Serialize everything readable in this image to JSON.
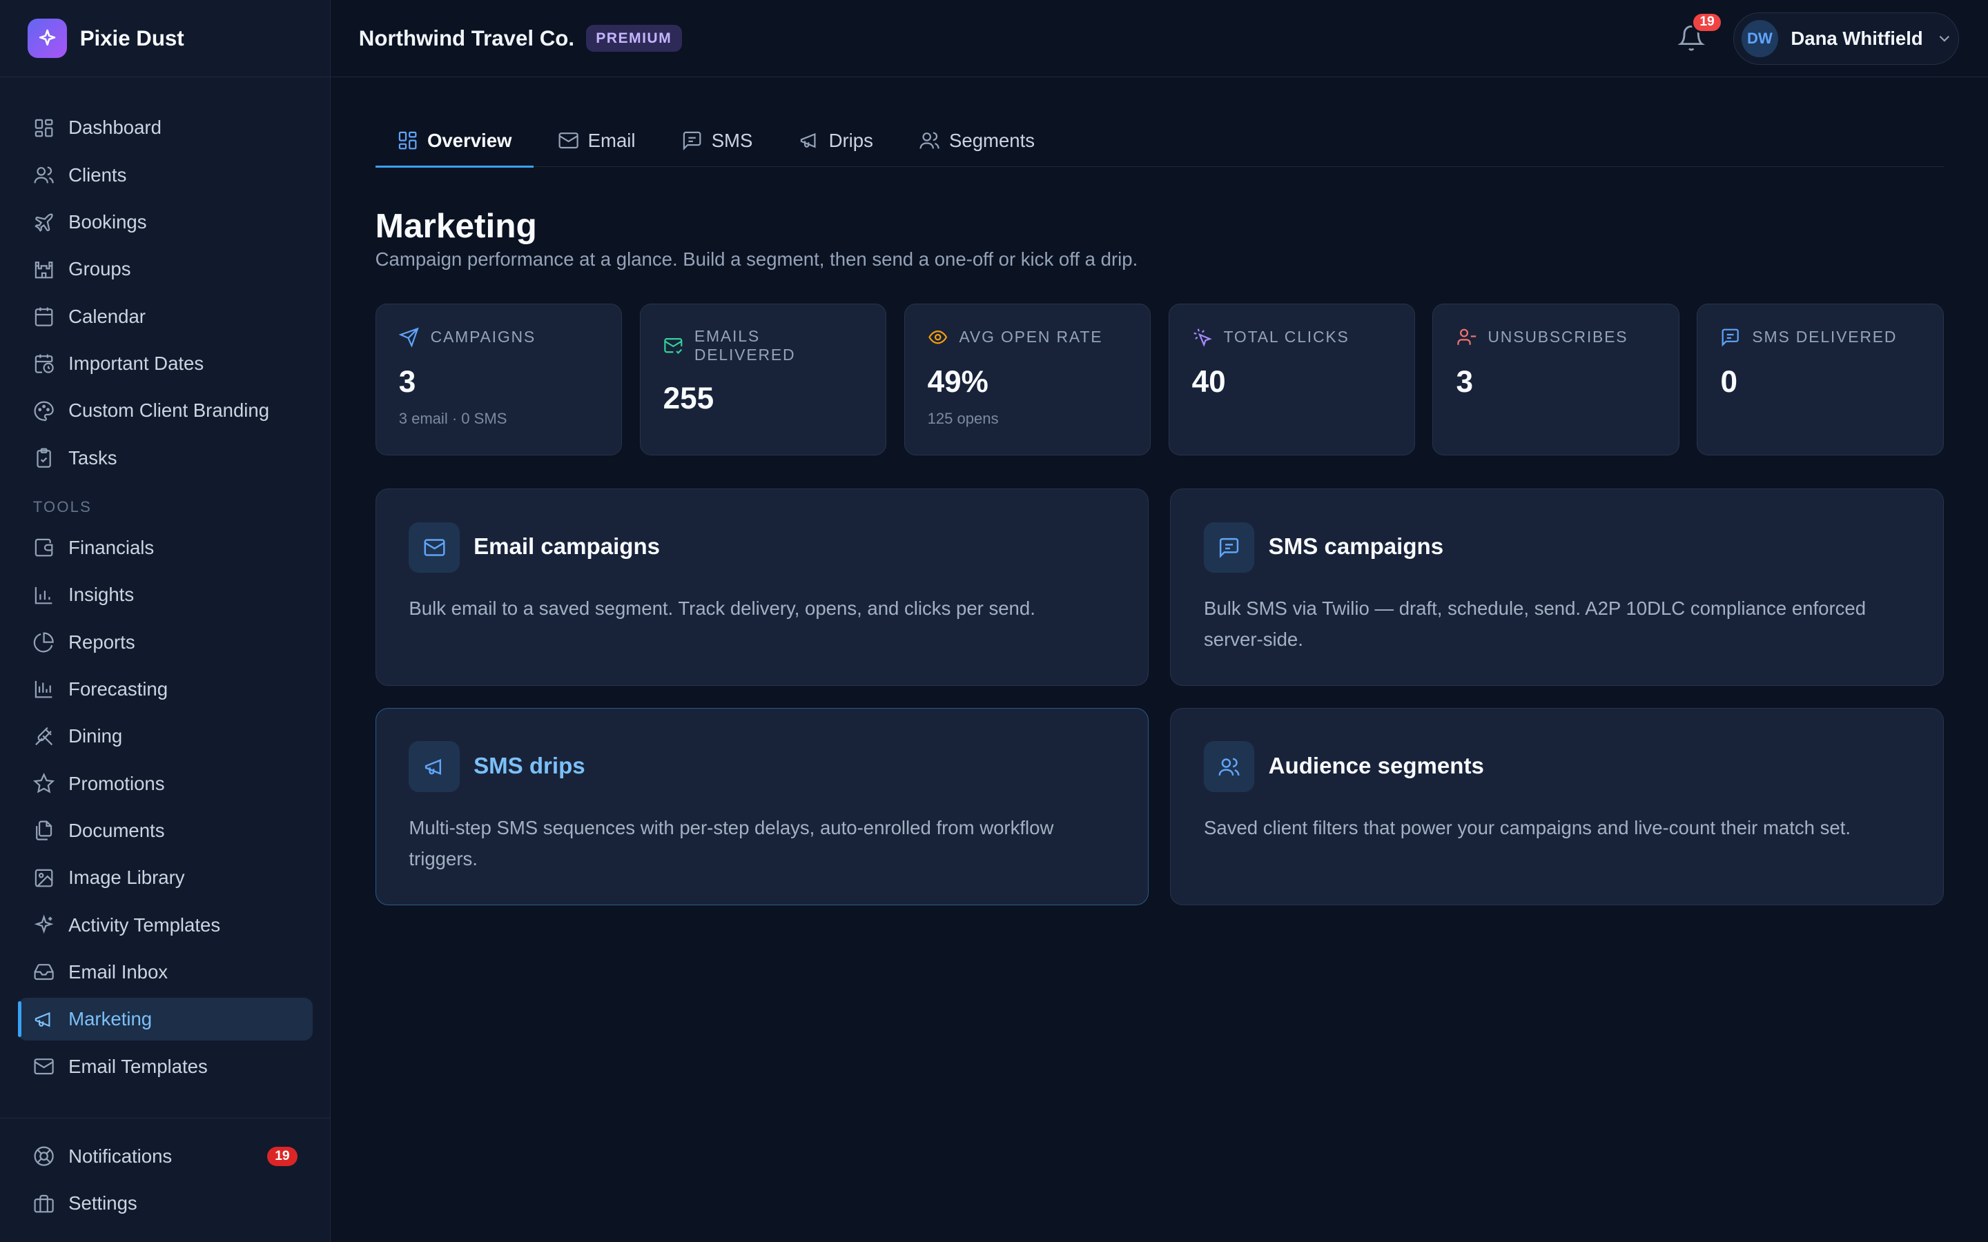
{
  "app": {
    "name": "Pixie Dust"
  },
  "sidebar": {
    "items": [
      {
        "label": "Dashboard",
        "icon": "dashboard-icon"
      },
      {
        "label": "Clients",
        "icon": "users-icon"
      },
      {
        "label": "Bookings",
        "icon": "plane-icon"
      },
      {
        "label": "Groups",
        "icon": "castle-icon"
      },
      {
        "label": "Calendar",
        "icon": "calendar-icon"
      },
      {
        "label": "Important Dates",
        "icon": "calendar-clock-icon"
      },
      {
        "label": "Custom Client Branding",
        "icon": "palette-icon"
      },
      {
        "label": "Tasks",
        "icon": "clipboard-check-icon"
      }
    ],
    "tools_heading": "TOOLS",
    "tools": [
      {
        "label": "Financials",
        "icon": "wallet-icon"
      },
      {
        "label": "Insights",
        "icon": "bar-chart-icon"
      },
      {
        "label": "Reports",
        "icon": "pie-chart-icon"
      },
      {
        "label": "Forecasting",
        "icon": "chart-icon"
      },
      {
        "label": "Dining",
        "icon": "utensils-icon"
      },
      {
        "label": "Promotions",
        "icon": "star-icon"
      },
      {
        "label": "Documents",
        "icon": "files-icon"
      },
      {
        "label": "Image Library",
        "icon": "image-icon"
      },
      {
        "label": "Activity Templates",
        "icon": "sparkles-icon"
      },
      {
        "label": "Email Inbox",
        "icon": "inbox-icon"
      },
      {
        "label": "Marketing",
        "icon": "megaphone-icon",
        "active": true
      },
      {
        "label": "Email Templates",
        "icon": "mail-icon"
      }
    ],
    "bottom": [
      {
        "label": "Notifications",
        "icon": "lifebuoy-icon",
        "badge": "19"
      },
      {
        "label": "Settings",
        "icon": "briefcase-icon"
      }
    ]
  },
  "header": {
    "org_name": "Northwind Travel Co.",
    "plan_badge": "PREMIUM",
    "notifications_count": "19",
    "user": {
      "initials": "DW",
      "name": "Dana Whitfield"
    }
  },
  "tabs": [
    {
      "label": "Overview",
      "active": true
    },
    {
      "label": "Email"
    },
    {
      "label": "SMS"
    },
    {
      "label": "Drips"
    },
    {
      "label": "Segments"
    }
  ],
  "page": {
    "title": "Marketing",
    "subtitle": "Campaign performance at a glance. Build a segment, then send a one-off or kick off a drip."
  },
  "stats": [
    {
      "label": "CAMPAIGNS",
      "value": "3",
      "sub": "3 email · 0 SMS",
      "color": "#60a5fa"
    },
    {
      "label": "EMAILS DELIVERED",
      "value": "255",
      "sub": "",
      "color": "#34d399"
    },
    {
      "label": "AVG OPEN RATE",
      "value": "49%",
      "sub": "125 opens",
      "color": "#f59e0b"
    },
    {
      "label": "TOTAL CLICKS",
      "value": "40",
      "sub": "",
      "color": "#a78bfa"
    },
    {
      "label": "UNSUBSCRIBES",
      "value": "3",
      "sub": "",
      "color": "#f87171"
    },
    {
      "label": "SMS DELIVERED",
      "value": "0",
      "sub": "",
      "color": "#60a5fa"
    }
  ],
  "cards": [
    {
      "title": "Email campaigns",
      "desc": "Bulk email to a saved segment. Track delivery, opens, and clicks per send.",
      "icon": "mail-icon"
    },
    {
      "title": "SMS campaigns",
      "desc": "Bulk SMS via Twilio — draft, schedule, send. A2P 10DLC compliance enforced server-side.",
      "icon": "message-icon"
    },
    {
      "title": "SMS drips",
      "desc": "Multi-step SMS sequences with per-step delays, auto-enrolled from workflow triggers.",
      "icon": "megaphone-icon"
    },
    {
      "title": "Audience segments",
      "desc": "Saved client filters that power your campaigns and live-count their match set.",
      "icon": "users-icon"
    }
  ]
}
